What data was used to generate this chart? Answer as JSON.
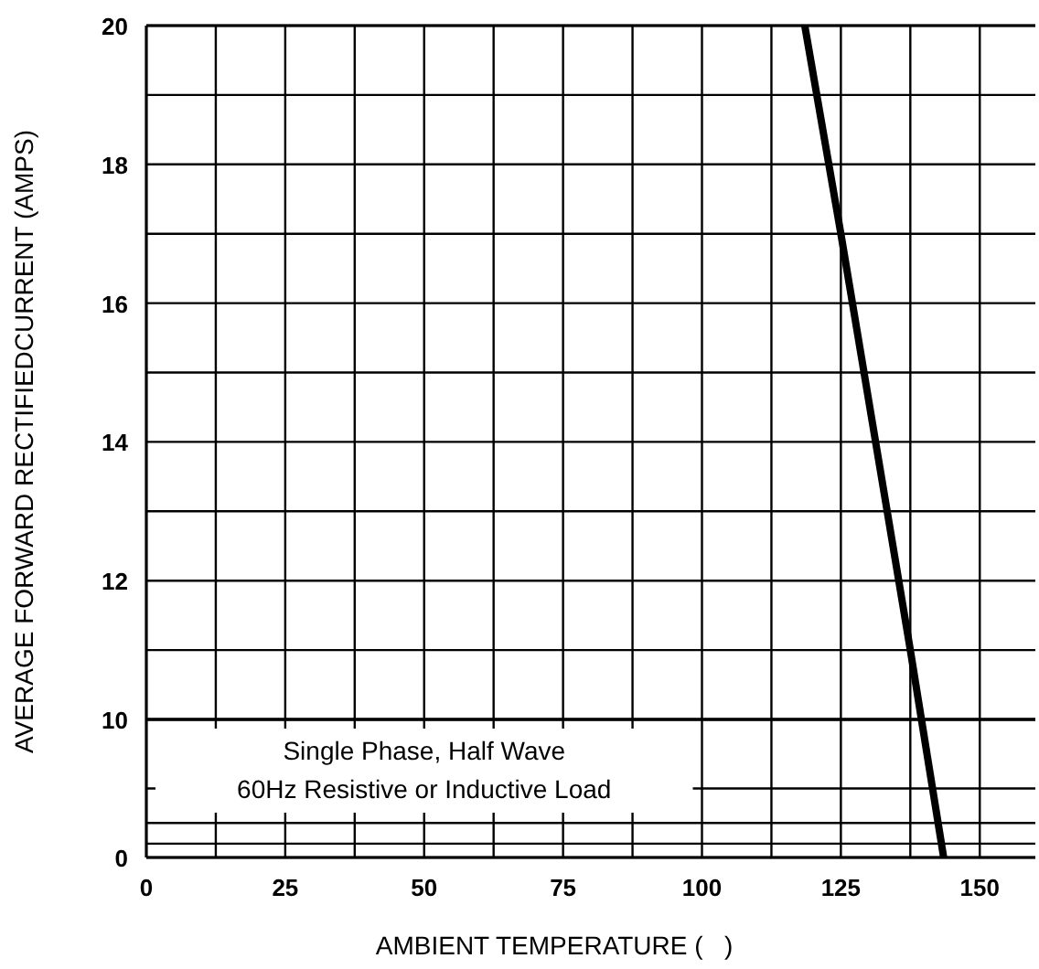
{
  "chart_data": [
    {
      "type": "line",
      "ylabel": "AVERAGE FORWARD RECTIFIEDCURRENT (AMPS)",
      "x": [
        118.5,
        125,
        137.5,
        139.5
      ],
      "series": [
        {
          "color": "#000000",
          "values": [
            20,
            17,
            11,
            10
          ]
        }
      ],
      "xlim": [
        0,
        160
      ],
      "xticks": [
        0,
        {
          "value": 12.5,
          "label": null
        },
        25,
        {
          "value": 37.5,
          "label": null
        },
        50,
        {
          "value": 62.5,
          "label": null
        },
        75,
        {
          "value": 87.5,
          "label": null
        },
        100,
        {
          "value": 112.5,
          "label": null
        },
        125,
        {
          "value": 137.5,
          "label": null
        },
        150
      ],
      "ylim": [
        10,
        20
      ],
      "yticks": [
        {
          "value": 11,
          "label": null
        },
        12,
        {
          "value": 13,
          "label": null
        },
        14,
        {
          "value": 15,
          "label": null
        },
        16,
        {
          "value": 17,
          "label": null
        },
        18,
        {
          "value": 19,
          "label": null
        },
        20
      ],
      "tick_labels": "y",
      "grid": true,
      "marker": "none",
      "line_style": "solid"
    },
    {
      "type": "line",
      "xlabel": "AMBIENT TEMPERATURE (   )",
      "x": [
        139.5,
        143.5
      ],
      "series": [
        {
          "color": "#000000",
          "values": [
            10,
            0
          ]
        }
      ],
      "xlim": [
        0,
        160
      ],
      "xticks": [
        0,
        {
          "value": 12.5,
          "label": null
        },
        25,
        {
          "value": 37.5,
          "label": null
        },
        50,
        {
          "value": 62.5,
          "label": null
        },
        75,
        {
          "value": 87.5,
          "label": null
        },
        100,
        {
          "value": 112.5,
          "label": null
        },
        125,
        {
          "value": 137.5,
          "label": null
        },
        150
      ],
      "ylim": [
        0,
        10
      ],
      "yticks": [
        0,
        {
          "value": 1,
          "label": null
        },
        {
          "value": 2.5,
          "label": null
        },
        {
          "value": 5,
          "label": null
        },
        10
      ],
      "grid": true,
      "marker": "none",
      "line_style": "solid",
      "annotations": [
        "Single Phase, Half Wave\n60Hz Resistive or Inductive Load"
      ]
    }
  ]
}
